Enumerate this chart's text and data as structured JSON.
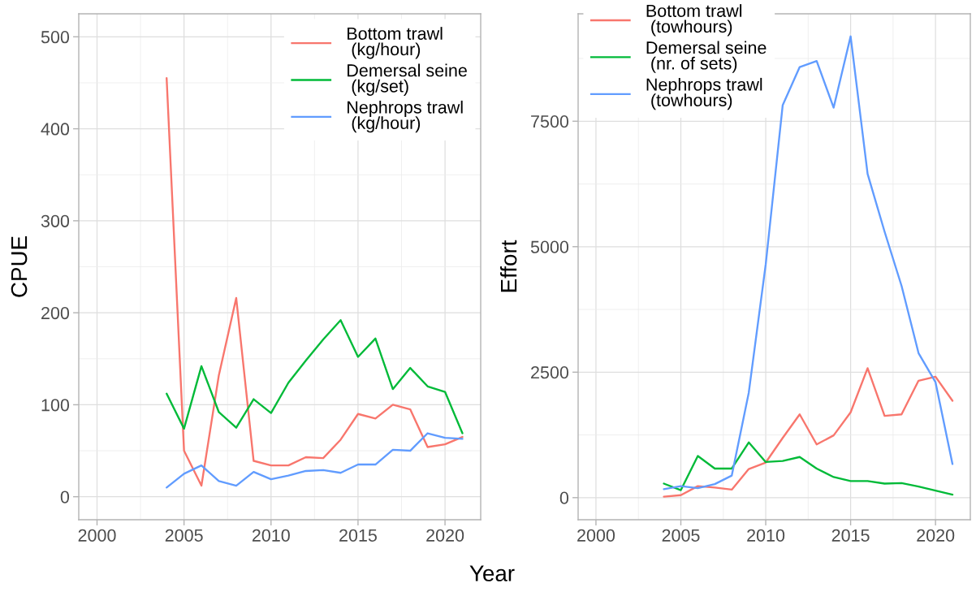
{
  "chart_data": [
    {
      "type": "line",
      "xlabel": "Year",
      "ylabel": "CPUE",
      "x": [
        2004,
        2005,
        2006,
        2007,
        2008,
        2009,
        2010,
        2011,
        2012,
        2013,
        2014,
        2015,
        2016,
        2017,
        2018,
        2019,
        2020,
        2021
      ],
      "series": [
        {
          "name": "Bottom trawl\n (kg/hour)",
          "color": "#f8766d",
          "values": [
            455,
            50,
            12,
            132,
            216,
            39,
            34,
            34,
            43,
            42,
            62,
            90,
            85,
            100,
            95,
            54,
            57,
            65
          ]
        },
        {
          "name": "Demersal seine\n (kg/set)",
          "color": "#00ba38",
          "values": [
            112,
            74,
            142,
            92,
            75,
            106,
            91,
            124,
            148,
            171,
            192,
            152,
            172,
            117,
            140,
            120,
            114,
            69
          ]
        },
        {
          "name": "Nephrops trawl\n (kg/hour)",
          "color": "#619cff",
          "values": [
            10,
            25,
            34,
            17,
            12,
            27,
            19,
            23,
            28,
            29,
            26,
            35,
            35,
            51,
            50,
            69,
            64,
            63
          ]
        }
      ],
      "xlim": [
        1998.95,
        2022.05
      ],
      "ylim": [
        -25,
        525
      ],
      "xticks": [
        2000,
        2005,
        2010,
        2015,
        2020
      ],
      "yticks": [
        0,
        100,
        200,
        300,
        400,
        500
      ],
      "grid": true,
      "legend": "top right"
    },
    {
      "type": "line",
      "ylabel": "Effort",
      "x": [
        2004,
        2005,
        2006,
        2007,
        2008,
        2009,
        2010,
        2011,
        2012,
        2013,
        2014,
        2015,
        2016,
        2017,
        2018,
        2019,
        2020,
        2021
      ],
      "series": [
        {
          "name": "Bottom trawl\n (towhours)",
          "color": "#f8766d",
          "values": [
            20,
            50,
            230,
            200,
            160,
            570,
            700,
            1190,
            1660,
            1060,
            1240,
            1700,
            2580,
            1630,
            1660,
            2330,
            2410,
            1930
          ]
        },
        {
          "name": "Demersal seine\n (nr. of sets)",
          "color": "#00ba38",
          "values": [
            280,
            150,
            830,
            580,
            580,
            1100,
            710,
            730,
            810,
            580,
            410,
            330,
            330,
            280,
            290,
            220,
            140,
            60
          ]
        },
        {
          "name": "Nephrops trawl\n (towhours)",
          "color": "#619cff",
          "values": [
            170,
            230,
            190,
            270,
            440,
            2090,
            4650,
            7820,
            8580,
            8700,
            7770,
            9190,
            6450,
            5300,
            4220,
            2880,
            2300,
            670
          ]
        }
      ],
      "xlim": [
        1998.95,
        2022.05
      ],
      "ylim": [
        -440,
        9640
      ],
      "xticks": [
        2000,
        2005,
        2010,
        2015,
        2020
      ],
      "yticks": [
        0,
        2500,
        5000,
        7500
      ],
      "grid": true,
      "legend": "top left"
    }
  ]
}
